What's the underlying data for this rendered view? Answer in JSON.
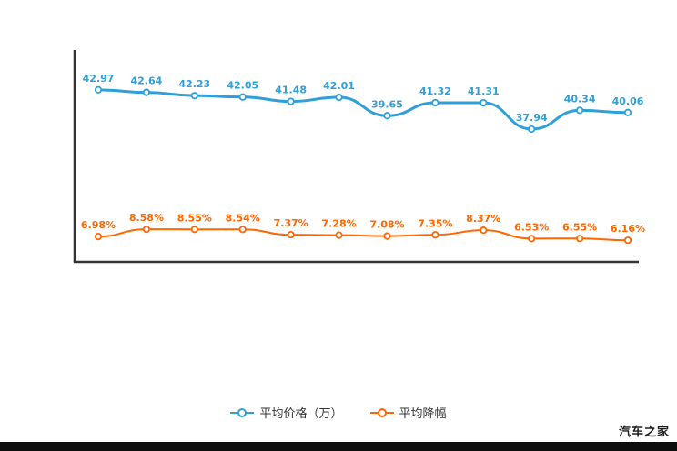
{
  "chart_data": {
    "type": "line",
    "title": "",
    "xlabel": "",
    "ylabel": "",
    "x_tick_labels": [],
    "grid": false,
    "legend_position": "bottom",
    "series": [
      {
        "id": "avg-price",
        "name": "平均价格（万）",
        "color": "#2f9fd9",
        "suffix": "",
        "values": [
          42.97,
          42.64,
          42.23,
          42.05,
          41.48,
          42.01,
          39.65,
          41.32,
          41.31,
          37.94,
          40.34,
          40.06
        ]
      },
      {
        "id": "avg-discount",
        "name": "平均降幅",
        "color": "#ff6600",
        "suffix": "%",
        "values": [
          6.98,
          8.58,
          8.55,
          8.54,
          7.37,
          7.28,
          7.08,
          7.35,
          8.37,
          6.53,
          6.55,
          6.16
        ]
      }
    ]
  },
  "watermark": "汽车之家"
}
